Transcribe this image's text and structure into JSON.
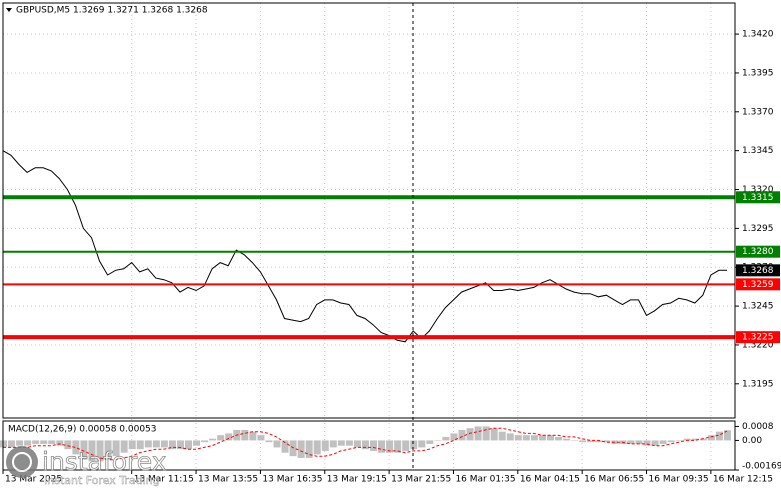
{
  "chart_data": [
    {
      "type": "line",
      "title": "GBPUSD,M5  1.3269 1.3271 1.3268 1.3268",
      "color": "#000000",
      "grid": true,
      "values": [
        1.3345,
        1.3342,
        1.3336,
        1.3331,
        1.3334,
        1.3334,
        1.3332,
        1.3327,
        1.332,
        1.331,
        1.3295,
        1.3289,
        1.3274,
        1.3265,
        1.3268,
        1.3269,
        1.3273,
        1.3267,
        1.3269,
        1.3263,
        1.3262,
        1.326,
        1.3254,
        1.3257,
        1.3255,
        1.3258,
        1.3269,
        1.3273,
        1.3271,
        1.3281,
        1.3278,
        1.3273,
        1.3267,
        1.3258,
        1.3249,
        1.3237,
        1.3236,
        1.3235,
        1.3237,
        1.3246,
        1.3249,
        1.3249,
        1.3247,
        1.3246,
        1.3239,
        1.3237,
        1.3233,
        1.3228,
        1.3226,
        1.3223,
        1.3222,
        1.3229,
        1.3224,
        1.3229,
        1.3237,
        1.3244,
        1.3249,
        1.3254,
        1.3256,
        1.3258,
        1.326,
        1.3255,
        1.3255,
        1.3256,
        1.3255,
        1.3256,
        1.3257,
        1.326,
        1.3262,
        1.3259,
        1.3256,
        1.3254,
        1.3253,
        1.3253,
        1.3251,
        1.3252,
        1.3249,
        1.3246,
        1.3249,
        1.3249,
        1.3239,
        1.3242,
        1.3246,
        1.3247,
        1.325,
        1.3249,
        1.3247,
        1.3252,
        1.3265,
        1.3268,
        1.3268
      ],
      "xlim": [
        0,
        91
      ],
      "xticks": [
        {
          "value": 0,
          "label": "13 Mar 2025"
        },
        {
          "value": 16,
          "label": "13 Mar 11:15"
        },
        {
          "value": 24,
          "label": "13 Mar 13:55"
        },
        {
          "value": 32,
          "label": "13 Mar 16:35"
        },
        {
          "value": 40,
          "label": "13 Mar 19:15"
        },
        {
          "value": 48,
          "label": "13 Mar 21:55"
        },
        {
          "value": 56,
          "label": "16 Mar 01:35"
        },
        {
          "value": 64,
          "label": "16 Mar 04:15"
        },
        {
          "value": 72,
          "label": "16 Mar 06:55"
        },
        {
          "value": 80,
          "label": "16 Mar 09:35"
        },
        {
          "value": 88,
          "label": "16 Mar 12:15"
        }
      ],
      "ylim": [
        1.3173,
        1.344
      ],
      "yticks": [
        {
          "value": 1.342,
          "label": "1.3420"
        },
        1.3395,
        {
          "value": 1.337,
          "label": "1.3370"
        },
        1.3345,
        {
          "value": 1.332,
          "label": "1.3320"
        },
        1.3295,
        {
          "value": 1.327,
          "label": "1.3270"
        },
        1.3245,
        {
          "value": 1.322,
          "label": "1.3220"
        },
        1.3195
      ],
      "levels": [
        {
          "value": 1.3315,
          "label": "1.3315",
          "color": "#008000",
          "width": 4
        },
        {
          "value": 1.328,
          "label": "1.3280",
          "color": "#008000",
          "width": 2
        },
        {
          "value": 1.3259,
          "label": "1.3259",
          "color": "#ff0000",
          "width": 2
        },
        {
          "value": 1.3225,
          "label": "1.3225",
          "color": "#ff0000",
          "width": 4
        }
      ],
      "current": {
        "value": 1.3268,
        "label": "1.3268",
        "color": "#000000"
      }
    },
    {
      "type": "macd",
      "title": "MACD(12,26,9) 0.00058 0.00053",
      "histogram": {
        "color": "#c0c0c0",
        "values": [
          -0.0004,
          -0.0004,
          -0.0003,
          -0.0003,
          -0.0002,
          -0.0002,
          -0.0002,
          -0.0003,
          -0.0005,
          -0.0008,
          -0.0011,
          -0.0012,
          -0.0012,
          -0.0011,
          -0.0009,
          -0.0007,
          -0.0005,
          -0.0005,
          -0.0004,
          -0.0004,
          -0.0004,
          -0.0005,
          -0.0005,
          -0.0005,
          -0.0003,
          -0.0001,
          0.0001,
          0.0003,
          0.0004,
          0.0006,
          0.0006,
          0.0005,
          0.0003,
          -0.0001,
          -0.0004,
          -0.0007,
          -0.0009,
          -0.001,
          -0.001,
          -0.0008,
          -0.0006,
          -0.0004,
          -0.0003,
          -0.0003,
          -0.0004,
          -0.0005,
          -0.0006,
          -0.0007,
          -0.0007,
          -0.0007,
          -0.0006,
          -0.0005,
          -0.0004,
          -0.0002,
          0,
          0.0002,
          0.0004,
          0.0006,
          0.0007,
          0.0008,
          0.0008,
          0.0007,
          0.0005,
          0.0004,
          0.0003,
          0.0003,
          0.0003,
          0.0003,
          0.0003,
          0.0002,
          0.0001,
          0,
          -0.0001,
          -0.0001,
          -0.0001,
          -0.0001,
          -0.0002,
          -0.0002,
          -0.0002,
          -0.0002,
          -0.0003,
          -0.0003,
          -0.0002,
          -0.0001,
          0,
          0.0001,
          0.0001,
          0.0001,
          0.0003,
          0.0005,
          0.00058
        ]
      },
      "signal": {
        "color": "#ff0000",
        "values": [
          -0.0004,
          -0.0004,
          -0.0004,
          -0.0004,
          -0.0003,
          -0.0003,
          -0.0003,
          -0.0002,
          -0.0003,
          -0.0004,
          -0.0006,
          -0.0008,
          -0.001,
          -0.0011,
          -0.0011,
          -0.001,
          -0.0009,
          -0.0007,
          -0.0006,
          -0.0005,
          -0.0005,
          -0.0004,
          -0.0004,
          -0.0005,
          -0.0005,
          -0.0004,
          -0.0003,
          -0.0001,
          0.0001,
          0.0003,
          0.0004,
          0.0005,
          0.0005,
          0.0004,
          0.0002,
          -0.0001,
          -0.0004,
          -0.0006,
          -0.0008,
          -0.0009,
          -0.0009,
          -0.0008,
          -0.0006,
          -0.0005,
          -0.0004,
          -0.0004,
          -0.0004,
          -0.0005,
          -0.0006,
          -0.0006,
          -0.0007,
          -0.0006,
          -0.0006,
          -0.0005,
          -0.0003,
          -0.0002,
          0,
          0.0002,
          0.0004,
          0.0005,
          0.0006,
          0.0007,
          0.0007,
          0.0006,
          0.0005,
          0.0004,
          0.0004,
          0.0003,
          0.0003,
          0.0003,
          0.0002,
          0.0002,
          0.0001,
          0,
          0,
          -0.0001,
          -0.0001,
          -0.0001,
          -0.0002,
          -0.0002,
          -0.0002,
          -0.0003,
          -0.0003,
          -0.0002,
          -0.0001,
          0,
          0,
          0.0001,
          0.0002,
          0.0003,
          0.00053
        ]
      },
      "ylim": [
        -0.00169,
        0.00111
      ],
      "yticks": [
        {
          "value": 0.0008,
          "label": "0.0008"
        },
        {
          "value": 0,
          "label": "0.00"
        },
        -0.00169
      ]
    }
  ],
  "watermark": {
    "brand": "instaforex",
    "tagline": "Instant Forex Trading"
  }
}
